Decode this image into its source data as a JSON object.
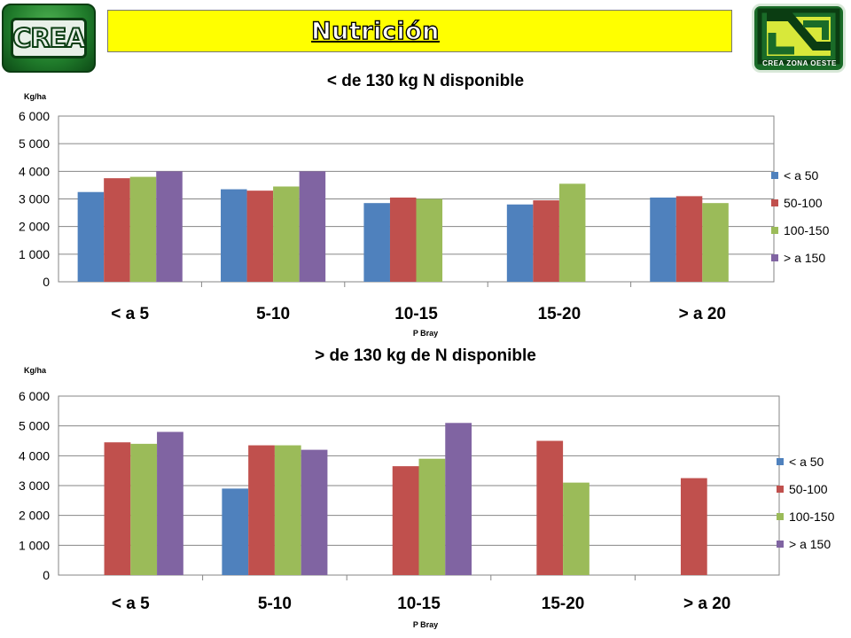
{
  "header": {
    "title": "Nutrición",
    "logo_left_text": "CREA",
    "logo_right_text": "CREA ZONA OESTE"
  },
  "colors": {
    "< a 50": "#4f81bd",
    "50-100": "#c0504d",
    "100-150": "#9bbb59",
    "> a 150": "#8064a2"
  },
  "chart_data": [
    {
      "type": "bar",
      "title": "< de 130 kg N disponible",
      "ylabel": "Kg/ha",
      "xlabel": "P Bray",
      "categories": [
        "< a 5",
        "5-10",
        "10-15",
        "15-20",
        "> a 20"
      ],
      "ylim": [
        0,
        6000
      ],
      "yticks": [
        "0",
        "1 000",
        "2 000",
        "3 000",
        "4 000",
        "5 000",
        "6 000"
      ],
      "legend_position": "right",
      "grid": true,
      "series": [
        {
          "name": "< a 50",
          "color": "#4f81bd",
          "values": [
            3250,
            3350,
            2850,
            2800,
            3050
          ]
        },
        {
          "name": "50-100",
          "color": "#c0504d",
          "values": [
            3750,
            3300,
            3050,
            2950,
            3100
          ]
        },
        {
          "name": "100-150",
          "color": "#9bbb59",
          "values": [
            3800,
            3450,
            3000,
            3550,
            2850
          ]
        },
        {
          "name": "> a 150",
          "color": "#8064a2",
          "values": [
            4000,
            4000,
            null,
            null,
            null
          ]
        }
      ]
    },
    {
      "type": "bar",
      "title": "> de 130 kg de N disponible",
      "ylabel": "Kg/ha",
      "xlabel": "P Bray",
      "categories": [
        "< a 5",
        "5-10",
        "10-15",
        "15-20",
        "> a 20"
      ],
      "ylim": [
        0,
        6000
      ],
      "yticks": [
        "0",
        "1 000",
        "2 000",
        "3 000",
        "4 000",
        "5 000",
        "6 000"
      ],
      "legend_position": "right",
      "grid": true,
      "series": [
        {
          "name": "< a 50",
          "color": "#4f81bd",
          "values": [
            null,
            2900,
            null,
            null,
            null
          ]
        },
        {
          "name": "50-100",
          "color": "#c0504d",
          "values": [
            4450,
            4350,
            3650,
            4500,
            3250
          ]
        },
        {
          "name": "100-150",
          "color": "#9bbb59",
          "values": [
            4400,
            4350,
            3900,
            3100,
            null
          ]
        },
        {
          "name": "> a 150",
          "color": "#8064a2",
          "values": [
            4800,
            4200,
            5100,
            null,
            null
          ]
        }
      ]
    }
  ]
}
